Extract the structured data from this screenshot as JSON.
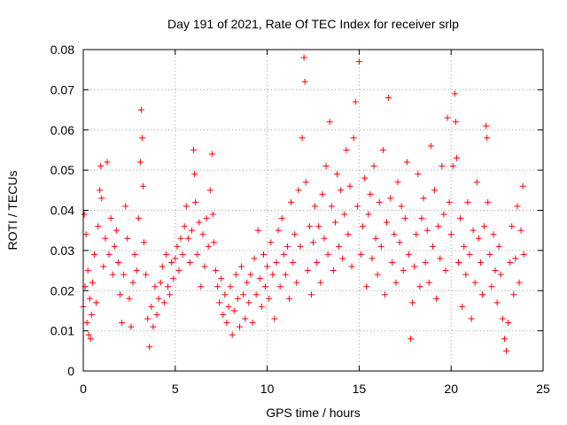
{
  "chart_data": {
    "type": "scatter",
    "title": "Day 191 of 2021, Rate Of TEC Index for receiver srlp",
    "xlabel": "GPS time / hours",
    "ylabel": "ROTI / TECUs",
    "xlim": [
      0,
      25
    ],
    "ylim": [
      0,
      0.08
    ],
    "x_ticks": [
      0,
      5,
      10,
      15,
      20,
      25
    ],
    "x_tick_labels": [
      "0",
      "5",
      "10",
      "15",
      "20",
      "25"
    ],
    "y_ticks": [
      0,
      0.01,
      0.02,
      0.03,
      0.04,
      0.05,
      0.06,
      0.07,
      0.08
    ],
    "y_tick_labels": [
      "0",
      "0.01",
      "0.02",
      "0.03",
      "0.04",
      "0.05",
      "0.06",
      "0.07",
      "0.08"
    ],
    "grid": true,
    "marker": "+",
    "point_color": "#ff0000",
    "series": [
      {
        "name": "ROTI",
        "points": [
          [
            0.0,
            0.016
          ],
          [
            0.05,
            0.039
          ],
          [
            0.1,
            0.021
          ],
          [
            0.15,
            0.034
          ],
          [
            0.2,
            0.012
          ],
          [
            0.25,
            0.025
          ],
          [
            0.3,
            0.009
          ],
          [
            0.35,
            0.018
          ],
          [
            0.4,
            0.008
          ],
          [
            0.45,
            0.014
          ],
          [
            0.5,
            0.022
          ],
          [
            0.6,
            0.029
          ],
          [
            0.7,
            0.017
          ],
          [
            0.8,
            0.036
          ],
          [
            0.9,
            0.045
          ],
          [
            0.95,
            0.051
          ],
          [
            1.0,
            0.043
          ],
          [
            1.1,
            0.026
          ],
          [
            1.2,
            0.033
          ],
          [
            1.3,
            0.052
          ],
          [
            1.4,
            0.029
          ],
          [
            1.5,
            0.038
          ],
          [
            1.6,
            0.024
          ],
          [
            1.7,
            0.031
          ],
          [
            1.8,
            0.035
          ],
          [
            1.9,
            0.027
          ],
          [
            2.0,
            0.019
          ],
          [
            2.1,
            0.012
          ],
          [
            2.2,
            0.024
          ],
          [
            2.3,
            0.041
          ],
          [
            2.4,
            0.033
          ],
          [
            2.5,
            0.018
          ],
          [
            2.6,
            0.011
          ],
          [
            2.7,
            0.022
          ],
          [
            2.8,
            0.029
          ],
          [
            2.9,
            0.025
          ],
          [
            3.0,
            0.038
          ],
          [
            3.1,
            0.052
          ],
          [
            3.15,
            0.065
          ],
          [
            3.2,
            0.058
          ],
          [
            3.25,
            0.046
          ],
          [
            3.3,
            0.032
          ],
          [
            3.4,
            0.024
          ],
          [
            3.5,
            0.013
          ],
          [
            3.6,
            0.006
          ],
          [
            3.7,
            0.016
          ],
          [
            3.8,
            0.011
          ],
          [
            3.9,
            0.021
          ],
          [
            4.0,
            0.014
          ],
          [
            4.1,
            0.018
          ],
          [
            4.2,
            0.022
          ],
          [
            4.3,
            0.026
          ],
          [
            4.4,
            0.017
          ],
          [
            4.5,
            0.029
          ],
          [
            4.6,
            0.021
          ],
          [
            4.7,
            0.019
          ],
          [
            4.8,
            0.027
          ],
          [
            4.9,
            0.023
          ],
          [
            5.0,
            0.028
          ],
          [
            5.1,
            0.031
          ],
          [
            5.2,
            0.025
          ],
          [
            5.3,
            0.033
          ],
          [
            5.4,
            0.029
          ],
          [
            5.5,
            0.036
          ],
          [
            5.6,
            0.041
          ],
          [
            5.7,
            0.033
          ],
          [
            5.8,
            0.027
          ],
          [
            5.9,
            0.035
          ],
          [
            6.0,
            0.055
          ],
          [
            6.05,
            0.049
          ],
          [
            6.1,
            0.042
          ],
          [
            6.2,
            0.029
          ],
          [
            6.3,
            0.037
          ],
          [
            6.4,
            0.021
          ],
          [
            6.5,
            0.034
          ],
          [
            6.6,
            0.026
          ],
          [
            6.7,
            0.038
          ],
          [
            6.8,
            0.031
          ],
          [
            6.9,
            0.045
          ],
          [
            7.0,
            0.054
          ],
          [
            7.05,
            0.039
          ],
          [
            7.1,
            0.032
          ],
          [
            7.2,
            0.025
          ],
          [
            7.3,
            0.021
          ],
          [
            7.4,
            0.017
          ],
          [
            7.5,
            0.023
          ],
          [
            7.6,
            0.014
          ],
          [
            7.7,
            0.019
          ],
          [
            7.8,
            0.012
          ],
          [
            7.9,
            0.016
          ],
          [
            8.0,
            0.021
          ],
          [
            8.1,
            0.009
          ],
          [
            8.2,
            0.015
          ],
          [
            8.3,
            0.024
          ],
          [
            8.4,
            0.018
          ],
          [
            8.5,
            0.011
          ],
          [
            8.6,
            0.026
          ],
          [
            8.7,
            0.019
          ],
          [
            8.8,
            0.013
          ],
          [
            8.9,
            0.022
          ],
          [
            9.0,
            0.017
          ],
          [
            9.1,
            0.024
          ],
          [
            9.2,
            0.012
          ],
          [
            9.3,
            0.028
          ],
          [
            9.4,
            0.019
          ],
          [
            9.5,
            0.035
          ],
          [
            9.6,
            0.023
          ],
          [
            9.7,
            0.016
          ],
          [
            9.8,
            0.029
          ],
          [
            9.9,
            0.021
          ],
          [
            10.0,
            0.026
          ],
          [
            10.1,
            0.018
          ],
          [
            10.2,
            0.032
          ],
          [
            10.3,
            0.024
          ],
          [
            10.4,
            0.013
          ],
          [
            10.5,
            0.027
          ],
          [
            10.6,
            0.035
          ],
          [
            10.7,
            0.021
          ],
          [
            10.8,
            0.038
          ],
          [
            10.9,
            0.029
          ],
          [
            11.0,
            0.024
          ],
          [
            11.1,
            0.031
          ],
          [
            11.2,
            0.018
          ],
          [
            11.3,
            0.042
          ],
          [
            11.4,
            0.027
          ],
          [
            11.5,
            0.034
          ],
          [
            11.6,
            0.022
          ],
          [
            11.7,
            0.045
          ],
          [
            11.8,
            0.031
          ],
          [
            11.9,
            0.058
          ],
          [
            12.0,
            0.078
          ],
          [
            12.05,
            0.072
          ],
          [
            12.1,
            0.047
          ],
          [
            12.2,
            0.025
          ],
          [
            12.3,
            0.036
          ],
          [
            12.4,
            0.019
          ],
          [
            12.5,
            0.032
          ],
          [
            12.6,
            0.041
          ],
          [
            12.7,
            0.027
          ],
          [
            12.8,
            0.036
          ],
          [
            12.9,
            0.022
          ],
          [
            13.0,
            0.044
          ],
          [
            13.1,
            0.033
          ],
          [
            13.2,
            0.051
          ],
          [
            13.3,
            0.029
          ],
          [
            13.4,
            0.062
          ],
          [
            13.5,
            0.041
          ],
          [
            13.6,
            0.025
          ],
          [
            13.7,
            0.037
          ],
          [
            13.8,
            0.049
          ],
          [
            13.9,
            0.031
          ],
          [
            14.0,
            0.045
          ],
          [
            14.1,
            0.028
          ],
          [
            14.2,
            0.039
          ],
          [
            14.3,
            0.055
          ],
          [
            14.4,
            0.034
          ],
          [
            14.5,
            0.046
          ],
          [
            14.6,
            0.026
          ],
          [
            14.7,
            0.058
          ],
          [
            14.8,
            0.067
          ],
          [
            14.9,
            0.041
          ],
          [
            15.0,
            0.077
          ],
          [
            15.1,
            0.029
          ],
          [
            15.2,
            0.036
          ],
          [
            15.3,
            0.048
          ],
          [
            15.4,
            0.021
          ],
          [
            15.5,
            0.039
          ],
          [
            15.6,
            0.044
          ],
          [
            15.7,
            0.028
          ],
          [
            15.8,
            0.051
          ],
          [
            15.9,
            0.033
          ],
          [
            16.0,
            0.024
          ],
          [
            16.1,
            0.042
          ],
          [
            16.2,
            0.031
          ],
          [
            16.3,
            0.055
          ],
          [
            16.4,
            0.019
          ],
          [
            16.5,
            0.037
          ],
          [
            16.6,
            0.068
          ],
          [
            16.7,
            0.043
          ],
          [
            16.8,
            0.027
          ],
          [
            16.9,
            0.034
          ],
          [
            17.0,
            0.022
          ],
          [
            17.1,
            0.047
          ],
          [
            17.2,
            0.032
          ],
          [
            17.3,
            0.041
          ],
          [
            17.4,
            0.025
          ],
          [
            17.5,
            0.038
          ],
          [
            17.6,
            0.052
          ],
          [
            17.7,
            0.029
          ],
          [
            17.8,
            0.008
          ],
          [
            17.9,
            0.017
          ],
          [
            18.0,
            0.026
          ],
          [
            18.1,
            0.034
          ],
          [
            18.2,
            0.049
          ],
          [
            18.3,
            0.021
          ],
          [
            18.4,
            0.038
          ],
          [
            18.5,
            0.043
          ],
          [
            18.6,
            0.027
          ],
          [
            18.7,
            0.035
          ],
          [
            18.8,
            0.022
          ],
          [
            18.9,
            0.056
          ],
          [
            19.0,
            0.031
          ],
          [
            19.1,
            0.045
          ],
          [
            19.2,
            0.018
          ],
          [
            19.3,
            0.036
          ],
          [
            19.4,
            0.028
          ],
          [
            19.5,
            0.051
          ],
          [
            19.6,
            0.039
          ],
          [
            19.7,
            0.025
          ],
          [
            19.8,
            0.063
          ],
          [
            19.9,
            0.042
          ],
          [
            20.0,
            0.034
          ],
          [
            20.1,
            0.051
          ],
          [
            20.2,
            0.069
          ],
          [
            20.25,
            0.062
          ],
          [
            20.3,
            0.053
          ],
          [
            20.4,
            0.027
          ],
          [
            20.5,
            0.038
          ],
          [
            20.6,
            0.016
          ],
          [
            20.7,
            0.031
          ],
          [
            20.8,
            0.024
          ],
          [
            20.9,
            0.042
          ],
          [
            21.0,
            0.029
          ],
          [
            21.1,
            0.013
          ],
          [
            21.2,
            0.035
          ],
          [
            21.3,
            0.022
          ],
          [
            21.4,
            0.047
          ],
          [
            21.5,
            0.033
          ],
          [
            21.6,
            0.027
          ],
          [
            21.7,
            0.019
          ],
          [
            21.8,
            0.036
          ],
          [
            21.9,
            0.061
          ],
          [
            21.95,
            0.058
          ],
          [
            22.0,
            0.042
          ],
          [
            22.1,
            0.029
          ],
          [
            22.2,
            0.021
          ],
          [
            22.3,
            0.034
          ],
          [
            22.4,
            0.025
          ],
          [
            22.5,
            0.017
          ],
          [
            22.6,
            0.031
          ],
          [
            22.7,
            0.024
          ],
          [
            22.8,
            0.013
          ],
          [
            22.9,
            0.008
          ],
          [
            23.0,
            0.005
          ],
          [
            23.1,
            0.012
          ],
          [
            23.2,
            0.027
          ],
          [
            23.3,
            0.036
          ],
          [
            23.4,
            0.019
          ],
          [
            23.5,
            0.028
          ],
          [
            23.6,
            0.041
          ],
          [
            23.7,
            0.022
          ],
          [
            23.8,
            0.035
          ],
          [
            23.9,
            0.046
          ],
          [
            23.95,
            0.029
          ]
        ]
      }
    ]
  }
}
